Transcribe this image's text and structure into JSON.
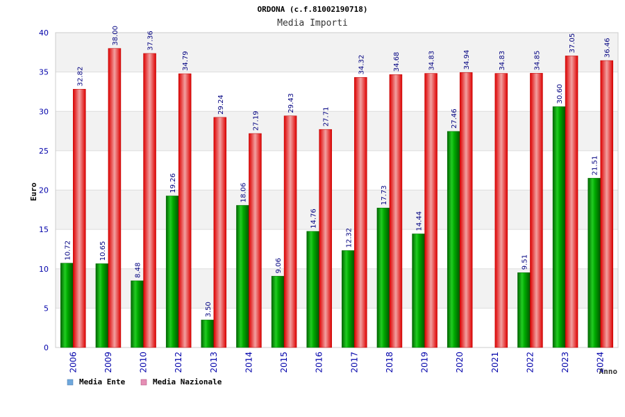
{
  "chart_data": {
    "type": "bar",
    "title": "ORDONA (c.f.81002190718)",
    "subtitle": "Media Importi",
    "xlabel": "Anno",
    "ylabel": "Euro",
    "ylim": [
      0,
      40
    ],
    "yticks": [
      0,
      5,
      10,
      15,
      20,
      25,
      30,
      35,
      40
    ],
    "categories": [
      "2006",
      "2009",
      "2010",
      "2012",
      "2013",
      "2014",
      "2015",
      "2016",
      "2017",
      "2018",
      "2019",
      "2020",
      "2021",
      "2022",
      "2023",
      "2024"
    ],
    "series": [
      {
        "name": "Media Ente",
        "values": [
          10.72,
          10.65,
          8.48,
          19.26,
          3.5,
          18.06,
          9.06,
          14.76,
          12.32,
          17.73,
          14.44,
          27.46,
          null,
          9.51,
          30.6,
          21.51
        ],
        "labels": [
          "10.72",
          "10.65",
          "8.48",
          "19.26",
          "3.50",
          "18.06",
          "9.06",
          "14.76",
          "12.32",
          "17.73",
          "14.44",
          "27.46",
          "",
          "9.51",
          "30.60",
          "21.51"
        ]
      },
      {
        "name": "Media Nazionale",
        "values": [
          32.82,
          38.0,
          37.36,
          34.79,
          29.24,
          27.19,
          29.43,
          27.71,
          34.32,
          34.68,
          34.83,
          34.94,
          34.83,
          34.85,
          37.05,
          36.46
        ],
        "labels": [
          "32.82",
          "38.00",
          "37.36",
          "34.79",
          "29.24",
          "27.19",
          "29.43",
          "27.71",
          "34.32",
          "34.68",
          "34.83",
          "34.94",
          "34.83",
          "34.85",
          "37.05",
          "36.46"
        ]
      }
    ],
    "legend": {
      "position": "bottom-left",
      "items": [
        {
          "label": "Media Ente",
          "color": "#6fa8dc"
        },
        {
          "label": "Media Nazionale",
          "color": "#e58fb5"
        }
      ]
    },
    "grid": true,
    "colors": {
      "ente": "#00aa00",
      "nazionale": "#ee1c25",
      "axis_text": "#0000aa",
      "label_text": "#000080",
      "band": "#f2f2f2"
    }
  }
}
